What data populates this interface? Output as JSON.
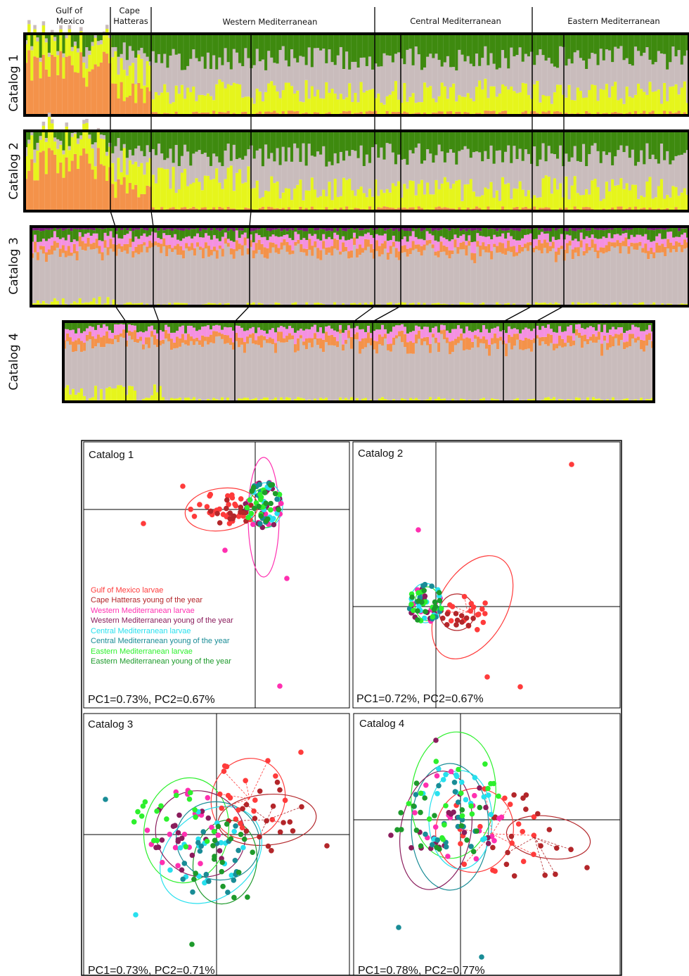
{
  "structure": {
    "region_labels": [
      {
        "lines": [
          "Gulf of",
          "Mexico"
        ]
      },
      {
        "lines": [
          "Cape",
          "Hatteras"
        ]
      },
      {
        "lines": [
          "Western Mediterranean"
        ]
      },
      {
        "lines": [
          "Central Mediterranean"
        ]
      },
      {
        "lines": [
          "Eastern Mediterranean"
        ]
      }
    ],
    "catalogs": [
      {
        "label": "Catalog 1",
        "bars": 230,
        "colors": [
          "#f4924a",
          "#e6f51c",
          "#c9bcbc",
          "#3e8a0f"
        ]
      },
      {
        "label": "Catalog 2",
        "bars": 230,
        "colors": [
          "#f4924a",
          "#e6f51c",
          "#c9bcbc",
          "#3e8a0f"
        ]
      },
      {
        "label": "Catalog 3",
        "bars": 235,
        "colors": [
          "#e6f51c",
          "#c9bcbc",
          "#f4924a",
          "#f490e0",
          "#3e8a0f",
          "#7a1a78"
        ]
      },
      {
        "label": "Catalog 4",
        "bars": 210,
        "colors": [
          "#e6f51c",
          "#c9bcbc",
          "#f4924a",
          "#f490e0",
          "#3e8a0f"
        ]
      }
    ]
  },
  "chart_data": [
    {
      "type": "scatter",
      "title": "Catalog 1",
      "caption": "PC1=0.73%, PC2=0.67%",
      "series": [
        {
          "name": "Gulf of Mexico larvae",
          "color": "#ff3b3b"
        },
        {
          "name": "Cape Hatteras young of the year",
          "color": "#b3262a"
        },
        {
          "name": "Western Mediterranean larvae",
          "color": "#ff2fb0"
        },
        {
          "name": "Western Mediterranean young of the year",
          "color": "#8a1c5c"
        },
        {
          "name": "Central Mediterranean larvae",
          "color": "#27e0ee"
        },
        {
          "name": "Central Mediterranean young of the year",
          "color": "#198c96"
        },
        {
          "name": "Eastern Mediterranean larvae",
          "color": "#2df02d"
        },
        {
          "name": "Eastern Mediterranean young of the year",
          "color": "#1d9a2b"
        }
      ]
    },
    {
      "type": "scatter",
      "title": "Catalog 2",
      "caption": "PC1=0.72%, PC2=0.67%"
    },
    {
      "type": "scatter",
      "title": "Catalog 3",
      "caption": "PC1=0.73%, PC2=0.71%"
    },
    {
      "type": "scatter",
      "title": "Catalog 4",
      "caption": "PC1=0.78%, PC2=0.77%"
    }
  ]
}
